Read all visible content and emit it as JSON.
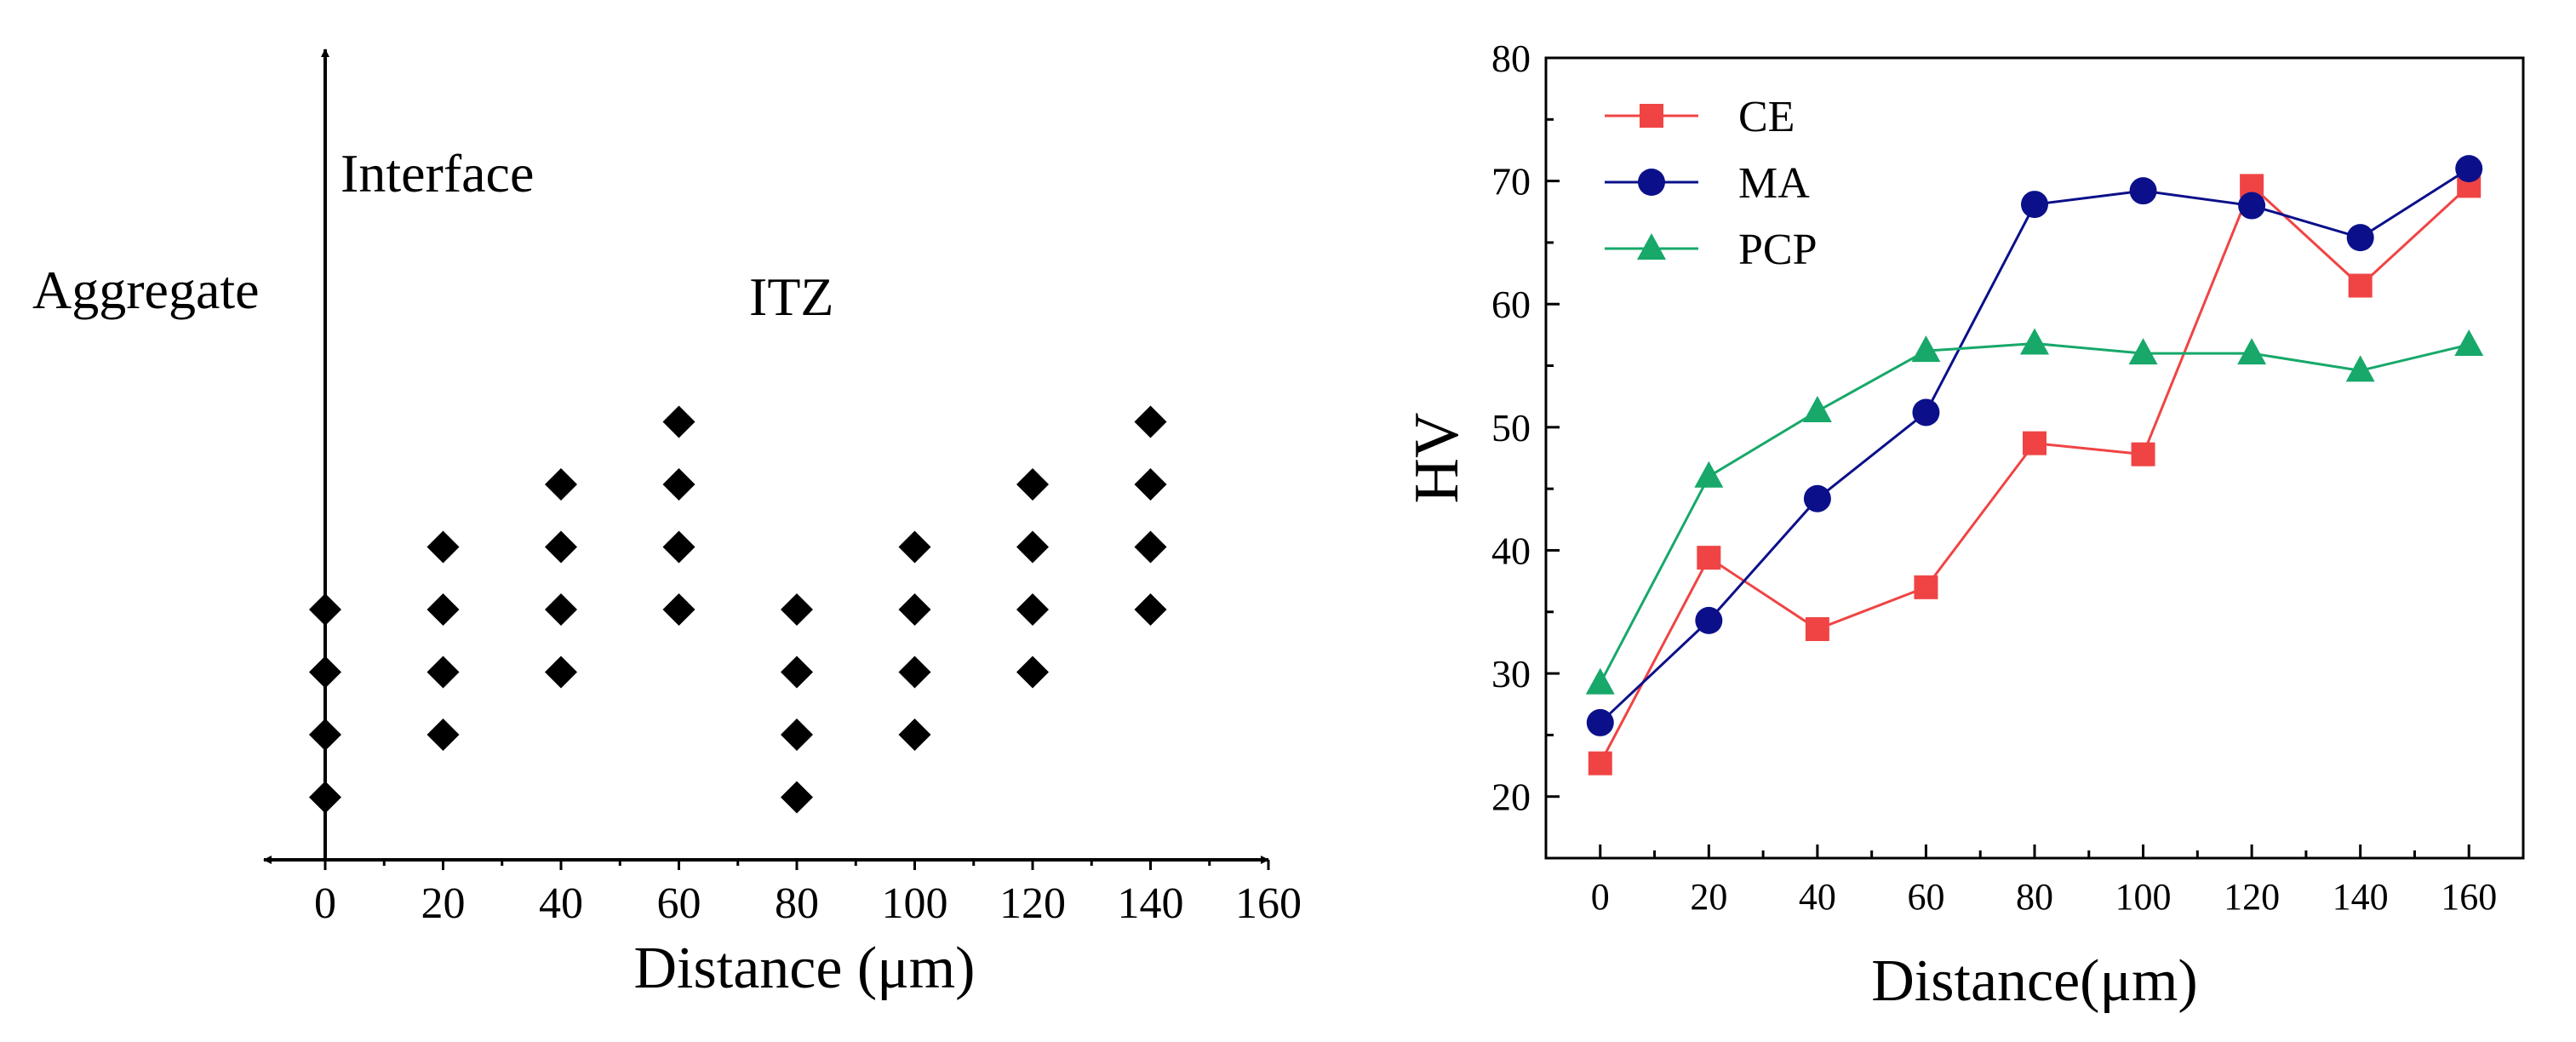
{
  "chart_data": [
    {
      "type": "scatter",
      "marker": "diamond",
      "xlabel": "Distance (μm)",
      "x_ticks": [
        "0",
        "20",
        "40",
        "60",
        "80",
        "100",
        "120",
        "140",
        "160"
      ],
      "xlim": [
        -10,
        165
      ],
      "ylim": [
        0,
        13
      ],
      "annotations": {
        "interface": "Interface",
        "aggregate": "Aggregate",
        "itz": "ITZ"
      },
      "color": "#000000",
      "points": [
        {
          "x": 0,
          "y": 1
        },
        {
          "x": 0,
          "y": 2
        },
        {
          "x": 0,
          "y": 3
        },
        {
          "x": 0,
          "y": 4
        },
        {
          "x": 20,
          "y": 2
        },
        {
          "x": 20,
          "y": 3
        },
        {
          "x": 20,
          "y": 4
        },
        {
          "x": 20,
          "y": 5
        },
        {
          "x": 40,
          "y": 3
        },
        {
          "x": 40,
          "y": 4
        },
        {
          "x": 40,
          "y": 5
        },
        {
          "x": 40,
          "y": 6
        },
        {
          "x": 60,
          "y": 4
        },
        {
          "x": 60,
          "y": 5
        },
        {
          "x": 60,
          "y": 6
        },
        {
          "x": 60,
          "y": 7
        },
        {
          "x": 80,
          "y": 1
        },
        {
          "x": 80,
          "y": 2
        },
        {
          "x": 80,
          "y": 3
        },
        {
          "x": 80,
          "y": 4
        },
        {
          "x": 100,
          "y": 2
        },
        {
          "x": 100,
          "y": 3
        },
        {
          "x": 100,
          "y": 4
        },
        {
          "x": 100,
          "y": 5
        },
        {
          "x": 120,
          "y": 3
        },
        {
          "x": 120,
          "y": 4
        },
        {
          "x": 120,
          "y": 5
        },
        {
          "x": 120,
          "y": 6
        },
        {
          "x": 140,
          "y": 4
        },
        {
          "x": 140,
          "y": 5
        },
        {
          "x": 140,
          "y": 6
        },
        {
          "x": 140,
          "y": 7
        }
      ]
    },
    {
      "type": "line",
      "xlabel": "Distance(μm)",
      "ylabel": "HV",
      "xlim": [
        -10,
        170
      ],
      "ylim": [
        15,
        80
      ],
      "x": [
        0,
        20,
        40,
        60,
        80,
        100,
        120,
        140,
        160
      ],
      "x_ticks": [
        0,
        20,
        40,
        60,
        80,
        100,
        120,
        140,
        160
      ],
      "y_ticks": [
        20,
        30,
        40,
        50,
        60,
        70,
        80
      ],
      "legend_position": "top-left",
      "series": [
        {
          "name": "CE",
          "color": "#f04444",
          "marker": "square",
          "values": [
            22.7,
            39.4,
            33.6,
            37.0,
            48.7,
            47.8,
            69.6,
            61.5,
            69.6
          ]
        },
        {
          "name": "MA",
          "color": "#0b108a",
          "marker": "circle",
          "values": [
            26.0,
            34.3,
            44.2,
            51.2,
            68.1,
            69.2,
            68.0,
            65.4,
            71.0
          ]
        },
        {
          "name": "PCP",
          "color": "#17a86a",
          "marker": "triangle",
          "values": [
            29.2,
            46.0,
            51.3,
            56.2,
            56.8,
            56.0,
            56.0,
            54.6,
            56.7
          ]
        }
      ]
    }
  ]
}
